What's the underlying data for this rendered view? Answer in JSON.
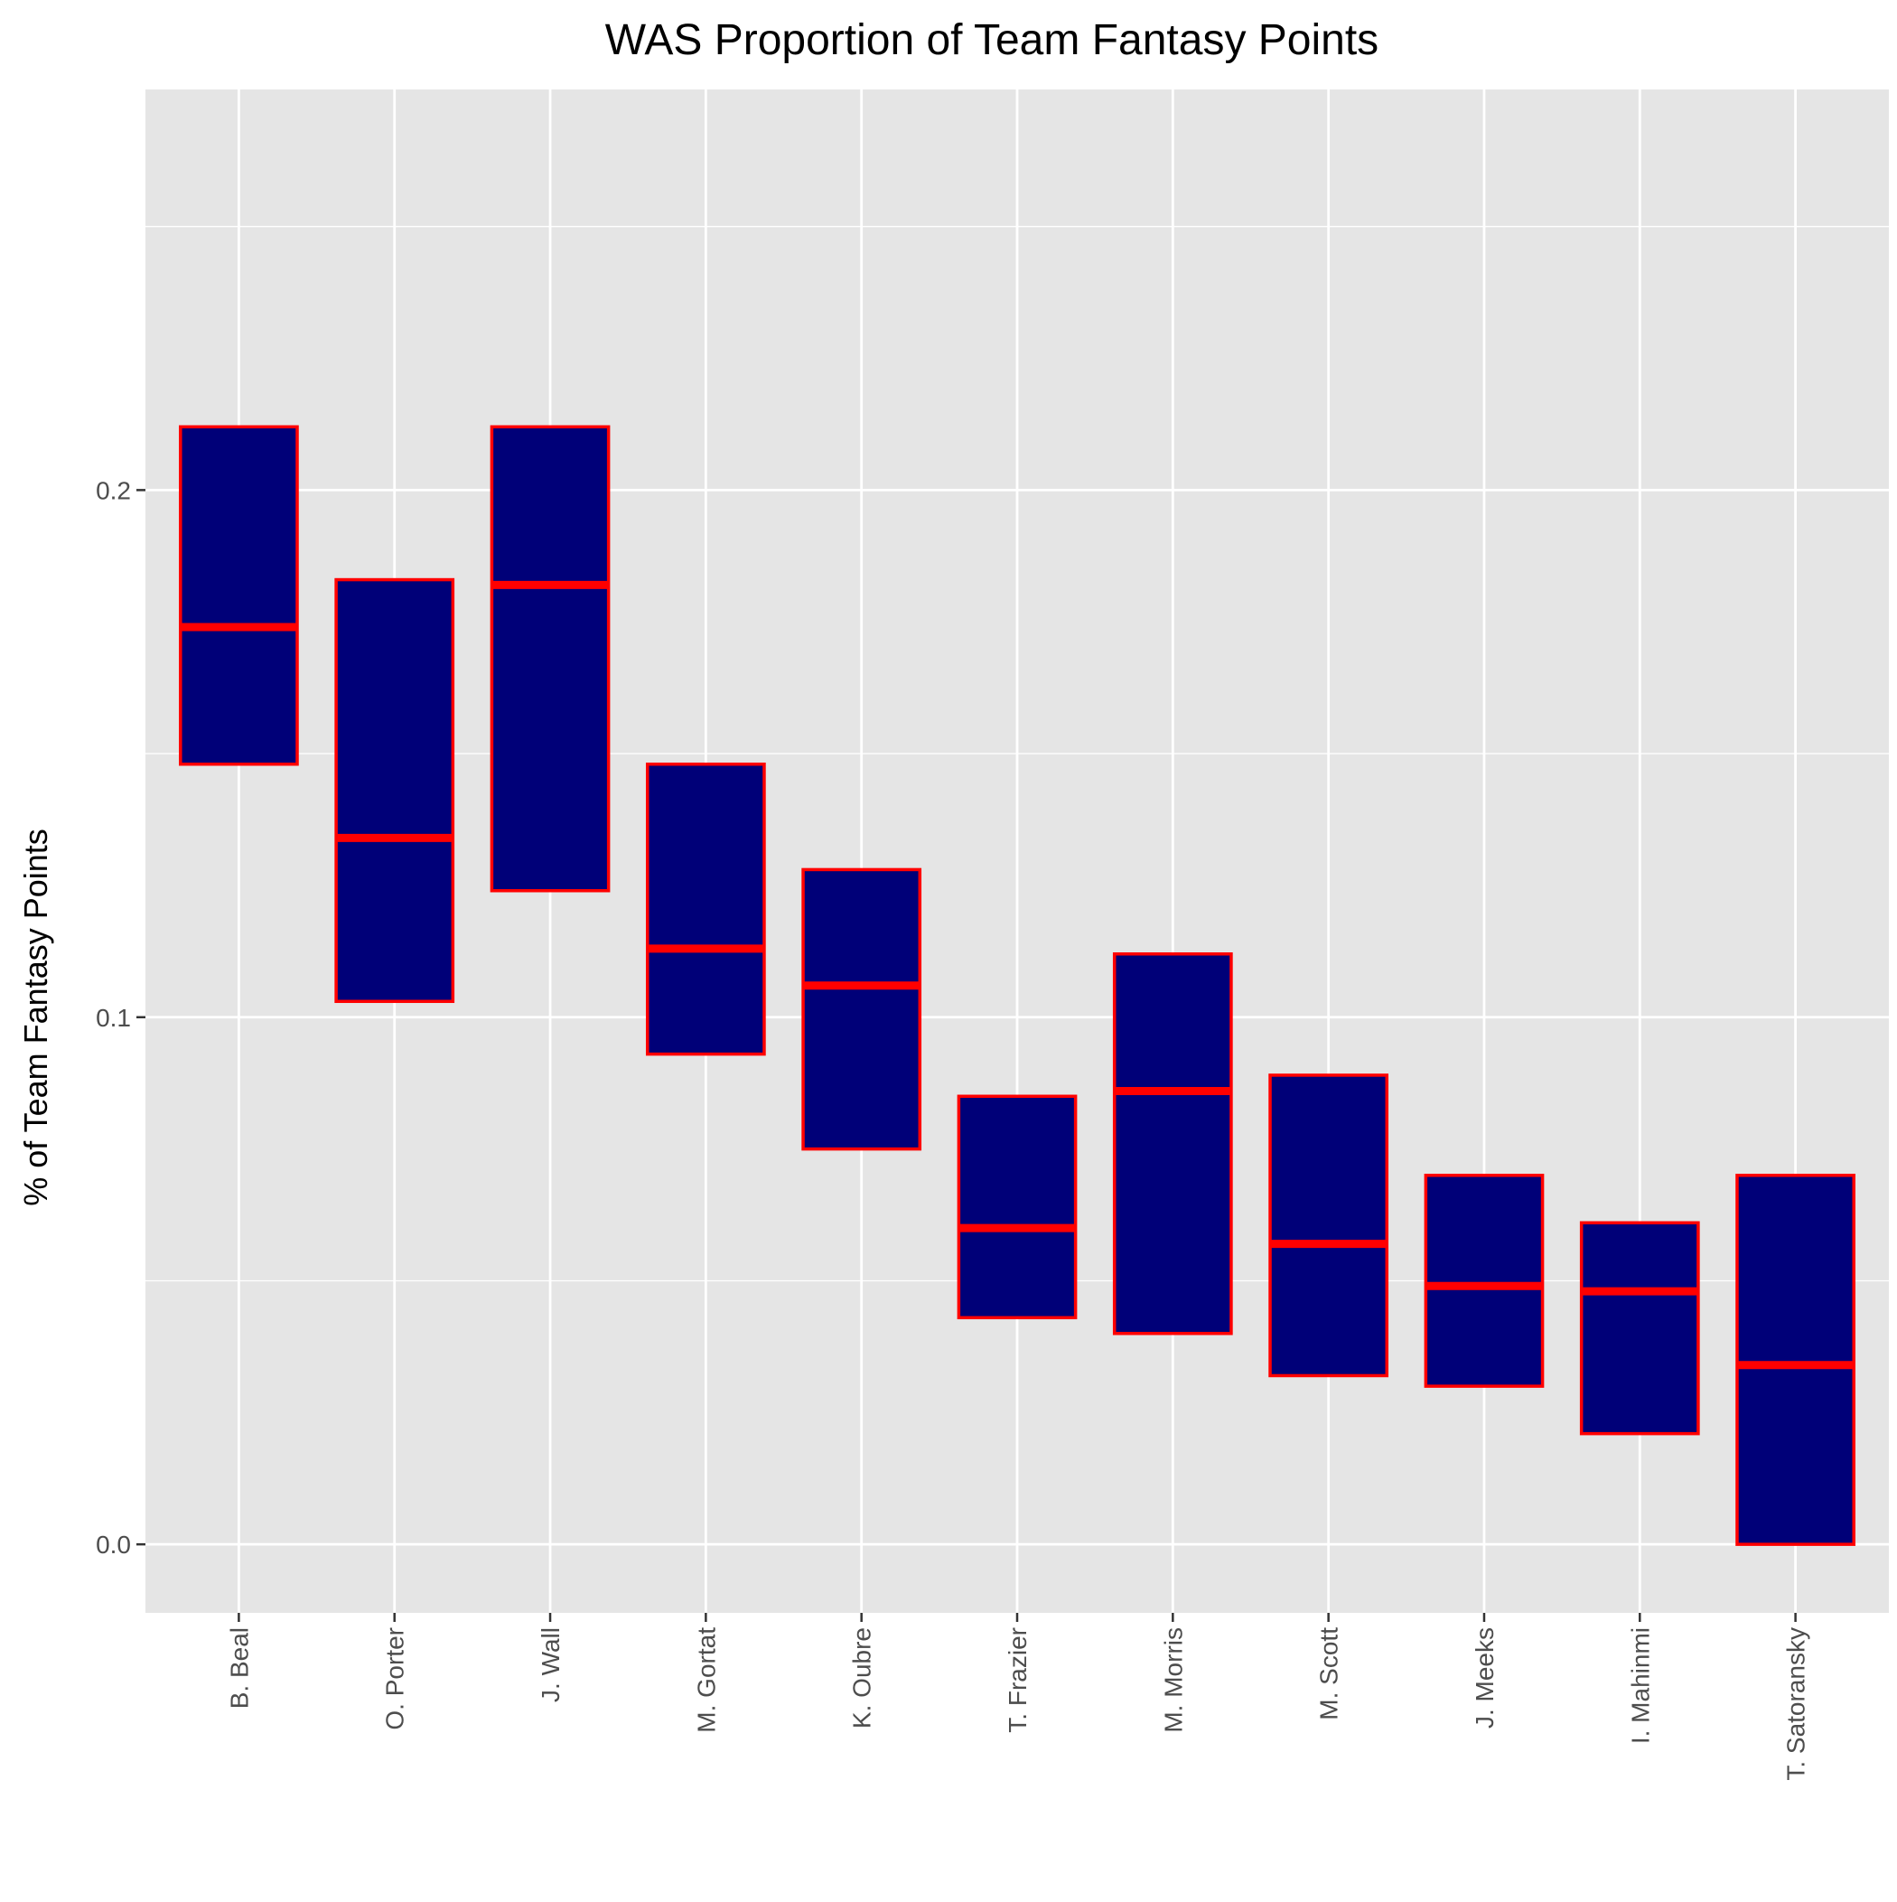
{
  "chart_data": {
    "type": "box",
    "title": "WAS Proportion of Team Fantasy Points",
    "xlabel": "",
    "ylabel": "% of Team Fantasy Points",
    "ylim": [
      -0.013,
      0.276
    ],
    "y_ticks": [
      "0.0",
      "0.1",
      "0.2"
    ],
    "y_tick_values": [
      0.0,
      0.1,
      0.2
    ],
    "y_minor_values": [
      0.05,
      0.15,
      0.25
    ],
    "grid": true,
    "legend": "none",
    "colors": {
      "panel": "#e5e5e5",
      "grid": "#ffffff",
      "box_fill": "#000078",
      "box_stroke": "#ff0000",
      "tick": "#333333"
    },
    "categories": [
      "B. Beal",
      "O. Porter",
      "J. Wall",
      "M. Gortat",
      "K. Oubre",
      "T. Frazier",
      "M. Morris",
      "M. Scott",
      "J. Meeks",
      "I. Mahinmi",
      "T. Satoransky"
    ],
    "boxes": [
      {
        "label": "B. Beal",
        "q1": 0.148,
        "median": 0.174,
        "q3": 0.212
      },
      {
        "label": "O. Porter",
        "q1": 0.103,
        "median": 0.134,
        "q3": 0.183
      },
      {
        "label": "J. Wall",
        "q1": 0.124,
        "median": 0.182,
        "q3": 0.212
      },
      {
        "label": "M. Gortat",
        "q1": 0.093,
        "median": 0.113,
        "q3": 0.148
      },
      {
        "label": "K. Oubre",
        "q1": 0.075,
        "median": 0.106,
        "q3": 0.128
      },
      {
        "label": "T. Frazier",
        "q1": 0.043,
        "median": 0.06,
        "q3": 0.085
      },
      {
        "label": "M. Morris",
        "q1": 0.04,
        "median": 0.086,
        "q3": 0.112
      },
      {
        "label": "M. Scott",
        "q1": 0.032,
        "median": 0.057,
        "q3": 0.089
      },
      {
        "label": "J. Meeks",
        "q1": 0.03,
        "median": 0.049,
        "q3": 0.07
      },
      {
        "label": "I. Mahinmi",
        "q1": 0.021,
        "median": 0.048,
        "q3": 0.061
      },
      {
        "label": "T. Satoransky",
        "q1": 0.0,
        "median": 0.034,
        "q3": 0.07
      }
    ]
  }
}
